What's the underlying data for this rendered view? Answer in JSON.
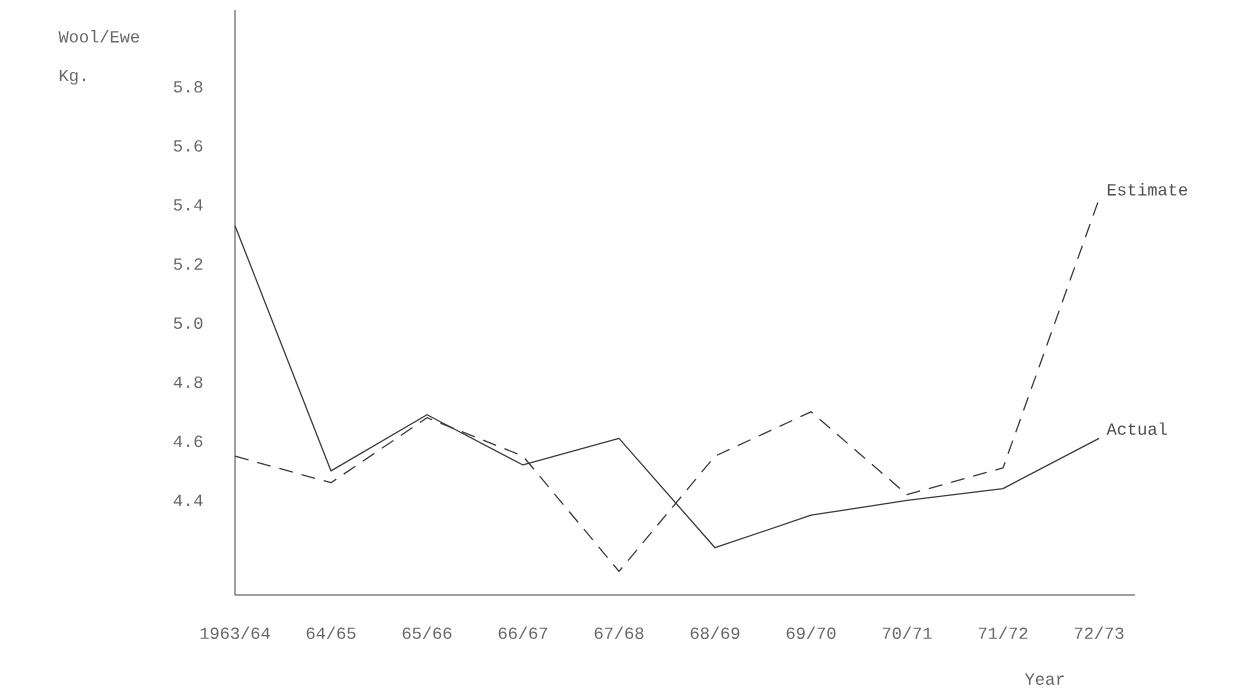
{
  "chart_data": {
    "type": "line",
    "xlabel": "Year",
    "ylabel": "Wool/Ewe",
    "annotations": [
      "Kg."
    ],
    "categories": [
      "1963/64",
      "64/65",
      "65/66",
      "66/67",
      "67/68",
      "68/69",
      "69/70",
      "70/71",
      "71/72",
      "72/73"
    ],
    "series": [
      {
        "name": "Actual",
        "color": "#3a3a3a",
        "line_style": "solid",
        "values": [
          5.33,
          4.5,
          4.69,
          4.52,
          4.61,
          4.24,
          4.35,
          4.4,
          4.44,
          4.61
        ]
      },
      {
        "name": "Estimate",
        "color": "#3a3a3a",
        "line_style": "dashed",
        "values": [
          4.55,
          4.46,
          4.68,
          4.55,
          4.16,
          4.55,
          4.7,
          4.42,
          4.51,
          5.42
        ]
      }
    ],
    "ylim": [
      4.08,
      6.06
    ],
    "yticks": [
      4.4,
      4.6,
      4.8,
      {
        "value": 5.0,
        "label": "5.0"
      },
      5.2,
      5.4,
      5.6,
      5.8
    ],
    "marker": "none",
    "grid": false
  }
}
